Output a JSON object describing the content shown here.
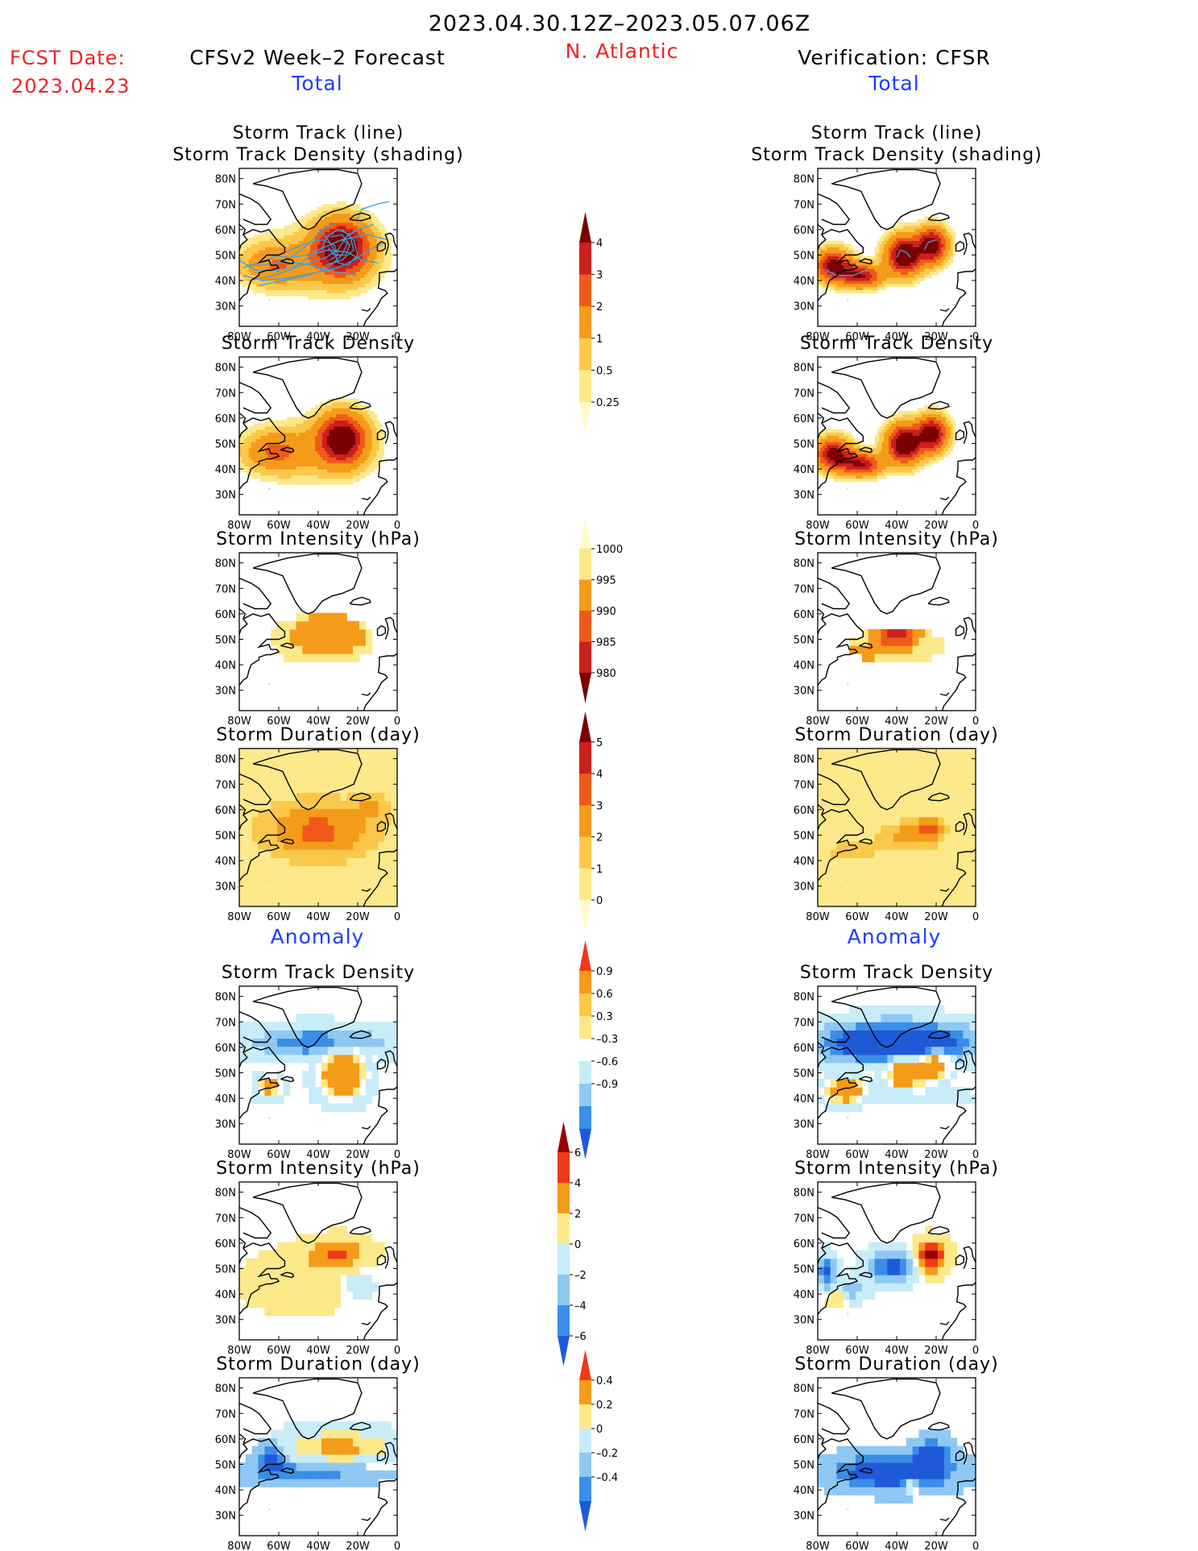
{
  "header": {
    "date_range": "2023.04.30.12Z–2023.05.07.06Z",
    "fcst_label": "FCST Date:",
    "fcst_date": "2023.04.23",
    "left_title": "CFSv2 Week–2 Forecast",
    "region": "N. Atlantic",
    "right_title": "Verification: CFSR",
    "total_label": "Total",
    "anomaly_label": "Anomaly"
  },
  "colors": {
    "title_red": "#ee2222",
    "label_blue": "#1e3cff",
    "track_line": "#3fa0e0",
    "map_line": "#000000"
  },
  "map_axes": {
    "lon_ticks": [
      "80W",
      "60W",
      "40W",
      "20W",
      "0"
    ],
    "lat_ticks": [
      "80N",
      "70N",
      "60N",
      "50N",
      "40N",
      "30N"
    ],
    "lon_range": [
      -80,
      0
    ],
    "lat_range": [
      22,
      84
    ]
  },
  "chart_data": [
    {
      "type": "heatmap",
      "id": "fc_track",
      "column": "forecast",
      "title_lines": [
        "Storm Track (line)",
        "Storm Track Density (shading)"
      ],
      "variable": "storm_track_density",
      "scale": "dens",
      "has_tracks": true,
      "blobs": [
        {
          "lon": -28,
          "lat": 53,
          "sx": 9,
          "sy": 7,
          "amp": 5.5
        },
        {
          "lon": -62,
          "lat": 46,
          "sx": 11,
          "sy": 5,
          "amp": 1.6
        },
        {
          "lon": -42,
          "lat": 48,
          "sx": 22,
          "sy": 9,
          "amp": 0.8
        }
      ]
    },
    {
      "type": "heatmap",
      "id": "fc_density",
      "column": "forecast",
      "title_lines": [
        "Storm Track Density"
      ],
      "variable": "storm_track_density",
      "scale": "dens",
      "blobs": [
        {
          "lon": -28,
          "lat": 52,
          "sx": 8,
          "sy": 6.5,
          "amp": 5.2
        },
        {
          "lon": -62,
          "lat": 47,
          "sx": 10,
          "sy": 5,
          "amp": 1.8
        },
        {
          "lon": -44,
          "lat": 47,
          "sx": 20,
          "sy": 8,
          "amp": 0.8
        }
      ]
    },
    {
      "type": "heatmap",
      "id": "fc_intensity",
      "column": "forecast",
      "title_lines": [
        "Storm Intensity (hPa)"
      ],
      "variable": "storm_intensity_hPa",
      "scale": "int",
      "blobs": [
        {
          "lon": -35,
          "lat": 52,
          "sx": 18,
          "sy": 8,
          "amp": 1
        }
      ],
      "base": 999,
      "mult": -7,
      "mask_blob": {
        "lon": -38,
        "lat": 50,
        "sx": 26,
        "sy": 10
      }
    },
    {
      "type": "heatmap",
      "id": "fc_duration",
      "column": "forecast",
      "title_lines": [
        "Storm Duration (day)"
      ],
      "variable": "storm_duration_day",
      "scale": "dur",
      "blobs": [
        {
          "lon": -40,
          "lat": 52,
          "sx": 22,
          "sy": 9,
          "amp": 3.3
        },
        {
          "lon": -12,
          "lat": 62,
          "sx": 6,
          "sy": 4,
          "amp": 1.6
        }
      ]
    },
    {
      "type": "heatmap",
      "id": "fc_anom_density",
      "column": "forecast",
      "title_lines": [
        "Storm Track Density"
      ],
      "variable": "storm_track_density_anomaly",
      "scale": "anomD",
      "blobs": [
        {
          "lon": -28,
          "lat": 50,
          "sx": 7,
          "sy": 6,
          "amp": 2.2
        },
        {
          "lon": -40,
          "lat": 62,
          "sx": 22,
          "sy": 4,
          "amp": -0.9
        },
        {
          "lon": -65,
          "lat": 45,
          "sx": 4,
          "sy": 3,
          "amp": 1.2
        }
      ]
    },
    {
      "type": "heatmap",
      "id": "fc_anom_intensity",
      "column": "forecast",
      "title_lines": [
        "Storm Intensity (hPa)"
      ],
      "variable": "storm_intensity_anomaly_hPa",
      "scale": "anomI",
      "blobs": [
        {
          "lon": -30,
          "lat": 56,
          "sx": 10,
          "sy": 4,
          "amp": 4
        },
        {
          "lon": -50,
          "lat": 45,
          "sx": 18,
          "sy": 8,
          "amp": 1.5
        },
        {
          "lon": -20,
          "lat": 44,
          "sx": 6,
          "sy": 4,
          "amp": -1.5
        }
      ]
    },
    {
      "type": "heatmap",
      "id": "fc_anom_duration",
      "column": "forecast",
      "title_lines": [
        "Storm Duration (day)"
      ],
      "variable": "storm_duration_anomaly_day",
      "scale": "anomU",
      "blobs": [
        {
          "lon": -30,
          "lat": 57,
          "sx": 18,
          "sy": 4,
          "amp": 0.5
        },
        {
          "lon": -45,
          "lat": 47,
          "sx": 20,
          "sy": 3,
          "amp": -0.3
        },
        {
          "lon": -64,
          "lat": 52,
          "sx": 5,
          "sy": 4,
          "amp": -0.5
        }
      ]
    },
    {
      "type": "heatmap",
      "id": "vf_track",
      "column": "verification",
      "title_lines": [
        "Storm Track (line)",
        "Storm Track Density (shading)"
      ],
      "variable": "storm_track_density",
      "scale": "dens",
      "has_tracks": true,
      "blobs": [
        {
          "lon": -36,
          "lat": 50,
          "sx": 6,
          "sy": 5,
          "amp": 5.5
        },
        {
          "lon": -22,
          "lat": 54,
          "sx": 5,
          "sy": 4.5,
          "amp": 5
        },
        {
          "lon": -72,
          "lat": 46,
          "sx": 6,
          "sy": 4,
          "amp": 4.5
        },
        {
          "lon": -58,
          "lat": 42,
          "sx": 7,
          "sy": 3,
          "amp": 4
        }
      ]
    },
    {
      "type": "heatmap",
      "id": "vf_density",
      "column": "verification",
      "title_lines": [
        "Storm Track Density"
      ],
      "variable": "storm_track_density",
      "scale": "dens",
      "blobs": [
        {
          "lon": -36,
          "lat": 50,
          "sx": 6,
          "sy": 5,
          "amp": 5.5
        },
        {
          "lon": -22,
          "lat": 54,
          "sx": 5,
          "sy": 4.5,
          "amp": 5
        },
        {
          "lon": -72,
          "lat": 46,
          "sx": 6,
          "sy": 4,
          "amp": 4.5
        },
        {
          "lon": -58,
          "lat": 42,
          "sx": 7,
          "sy": 3,
          "amp": 4
        }
      ]
    },
    {
      "type": "heatmap",
      "id": "vf_intensity",
      "column": "verification",
      "title_lines": [
        "Storm Intensity (hPa)"
      ],
      "variable": "storm_intensity_hPa",
      "scale": "int",
      "blobs": [
        {
          "lon": -40,
          "lat": 52,
          "sx": 8,
          "sy": 4,
          "amp": 1
        },
        {
          "lon": -60,
          "lat": 44,
          "sx": 7,
          "sy": 3,
          "amp": 0.5
        },
        {
          "lon": -77,
          "lat": 50,
          "sx": 3,
          "sy": 3,
          "amp": 0.8
        }
      ],
      "base": 999,
      "mult": -17,
      "mask_blob": {
        "lon": -40,
        "lat": 48,
        "sx": 24,
        "sy": 7
      }
    },
    {
      "type": "heatmap",
      "id": "vf_duration",
      "column": "verification",
      "title_lines": [
        "Storm Duration (day)"
      ],
      "variable": "storm_duration_day",
      "scale": "dur",
      "blobs": [
        {
          "lon": -36,
          "lat": 50,
          "sx": 10,
          "sy": 4,
          "amp": 2.5
        },
        {
          "lon": -62,
          "lat": 44,
          "sx": 10,
          "sy": 3.5,
          "amp": 1.8
        },
        {
          "lon": -22,
          "lat": 53,
          "sx": 6,
          "sy": 4,
          "amp": 2.5
        }
      ]
    },
    {
      "type": "heatmap",
      "id": "vf_anom_density",
      "column": "verification",
      "title_lines": [
        "Storm Track Density"
      ],
      "variable": "storm_track_density_anomaly",
      "scale": "anomD",
      "blobs": [
        {
          "lon": -36,
          "lat": 50,
          "sx": 6,
          "sy": 4,
          "amp": 2
        },
        {
          "lon": -22,
          "lat": 53,
          "sx": 5,
          "sy": 4,
          "amp": 2
        },
        {
          "lon": -66,
          "lat": 43,
          "sx": 7,
          "sy": 3,
          "amp": 2
        },
        {
          "lon": -40,
          "lat": 62,
          "sx": 24,
          "sy": 5,
          "amp": -2
        },
        {
          "lon": -40,
          "lat": 41,
          "sx": 20,
          "sy": 2,
          "amp": -0.4
        }
      ]
    },
    {
      "type": "heatmap",
      "id": "vf_anom_intensity",
      "column": "verification",
      "title_lines": [
        "Storm Intensity (hPa)"
      ],
      "variable": "storm_intensity_anomaly_hPa",
      "scale": "anomI",
      "blobs": [
        {
          "lon": -23,
          "lat": 55,
          "sx": 5,
          "sy": 4,
          "amp": 8
        },
        {
          "lon": -42,
          "lat": 51,
          "sx": 8,
          "sy": 4,
          "amp": -7
        },
        {
          "lon": -76,
          "lat": 49,
          "sx": 3,
          "sy": 4,
          "amp": -7
        },
        {
          "lon": -62,
          "lat": 42,
          "sx": 5,
          "sy": 3,
          "amp": -3
        },
        {
          "lon": -70,
          "lat": 38,
          "sx": 3,
          "sy": 2,
          "amp": 2.5
        }
      ]
    },
    {
      "type": "heatmap",
      "id": "vf_anom_duration",
      "column": "verification",
      "title_lines": [
        "Storm Duration (day)"
      ],
      "variable": "storm_duration_anomaly_day",
      "scale": "anomU",
      "blobs": [
        {
          "lon": -42,
          "lat": 47,
          "sx": 18,
          "sy": 4,
          "amp": -0.8
        },
        {
          "lon": -22,
          "lat": 53,
          "sx": 5,
          "sy": 4,
          "amp": -0.8
        },
        {
          "lon": -33,
          "lat": 42,
          "sx": 3,
          "sy": 1.5,
          "amp": 0.6
        }
      ]
    }
  ],
  "colorbars": [
    {
      "id": "cb_density",
      "scale": "dens",
      "labels": [
        "4",
        "3",
        "2",
        "1",
        "0.5",
        "0.25"
      ],
      "colors": [
        "#7b0000",
        "#cc1f1f",
        "#ef5a18",
        "#f59b1a",
        "#fbc84a",
        "#fde98a",
        "#fffbc8"
      ]
    },
    {
      "id": "cb_intensity",
      "scale": "int",
      "labels": [
        "1000",
        "995",
        "990",
        "985",
        "980"
      ],
      "colors": [
        "#fffbc8",
        "#fde98a",
        "#f59b1a",
        "#ef5a18",
        "#cc1f1f",
        "#7b0000"
      ]
    },
    {
      "id": "cb_duration",
      "scale": "dur",
      "labels": [
        "5",
        "4",
        "3",
        "2",
        "1",
        "0"
      ],
      "colors": [
        "#7b0000",
        "#cc1f1f",
        "#ef5a18",
        "#f59b1a",
        "#fbc84a",
        "#fde98a",
        "#fffbc8"
      ]
    },
    {
      "id": "cb_anom_density",
      "scale": "anomD",
      "labels": [
        "0.9",
        "0.6",
        "0.3",
        "–0.3",
        "–0.6",
        "–0.9"
      ],
      "colors": [
        "#ef3a1a",
        "#f59b1a",
        "#fbc84a",
        "#fde98a",
        "#ffffff",
        "#c8ecf8",
        "#8fc8f2",
        "#3a8ee8",
        "#1e5ad8"
      ]
    },
    {
      "id": "cb_anom_intensity",
      "scale": "anomI",
      "labels": [
        "6",
        "4",
        "2",
        "0",
        "–2",
        "–4",
        "–6"
      ],
      "colors": [
        "#9b0000",
        "#ef3a1a",
        "#f59b1a",
        "#fde98a",
        "#c8ecf8",
        "#8fc8f2",
        "#3a8ee8",
        "#1e5ad8"
      ]
    },
    {
      "id": "cb_anom_duration",
      "scale": "anomU",
      "labels": [
        "0.4",
        "0.2",
        "0",
        "–0.2",
        "–0.4"
      ],
      "colors": [
        "#ef3a1a",
        "#f59b1a",
        "#fde98a",
        "#c8ecf8",
        "#8fc8f2",
        "#3a8ee8",
        "#1e5ad8"
      ]
    }
  ]
}
